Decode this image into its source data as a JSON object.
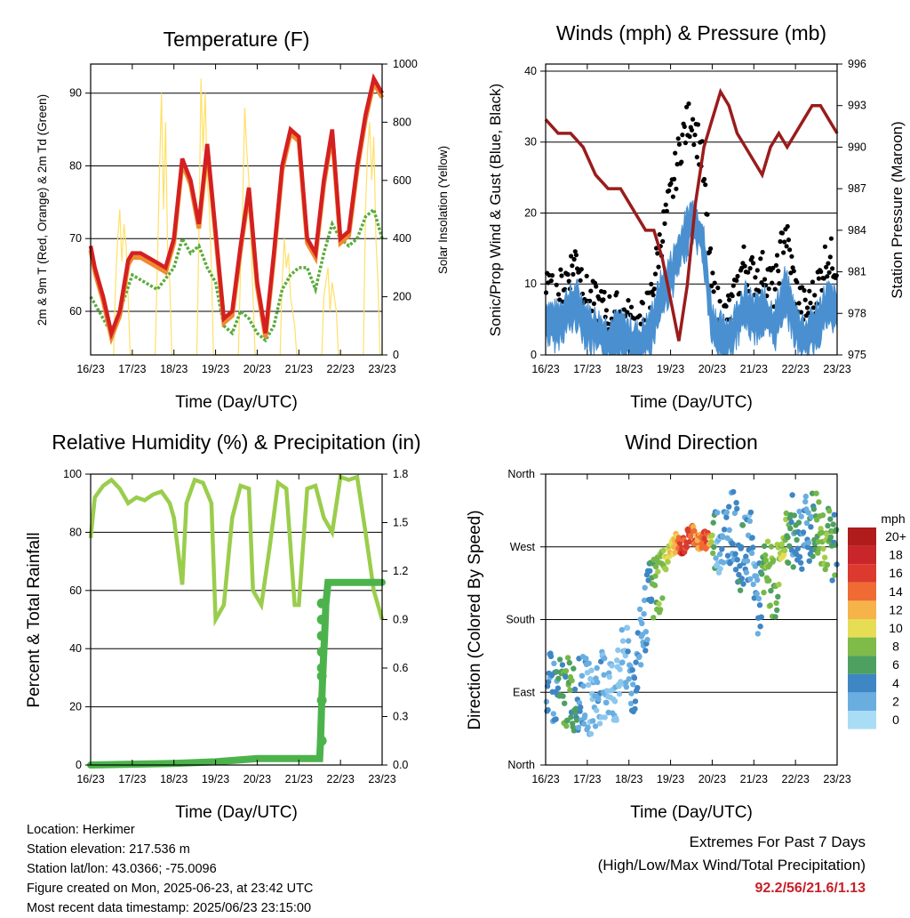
{
  "panels": {
    "temperature": {
      "title": "Temperature (F)",
      "xlabel": "Time (Day/UTC)",
      "ylabel_left": "2m & 9m T (Red, Orange) & 2m Td (Green)",
      "ylabel_right": "Solar Insolation (Yellow)"
    },
    "winds": {
      "title": "Winds (mph) & Pressure (mb)",
      "xlabel": "Time (Day/UTC)",
      "ylabel_left": "Sonic/Prop Wind & Gust (Blue, Black)",
      "ylabel_right": "Station Pressure (Maroon)"
    },
    "humidity": {
      "title": "Relative Humidity (%) & Precipitation (in)",
      "xlabel": "Time (Day/UTC)",
      "ylabel_left": "Percent & Total Rainfall"
    },
    "direction": {
      "title": "Wind Direction",
      "xlabel": "Time (Day/UTC)",
      "ylabel_left": "Direction (Colored By Speed)",
      "legend_title": "mph"
    }
  },
  "info": {
    "location": "Location: Herkimer",
    "elevation": "Station elevation: 217.536 m",
    "latlon": "Station lat/lon: 43.0366; -75.0096",
    "created": "Figure created on Mon, 2025-06-23, at 23:42 UTC",
    "timestamp": "Most recent data timestamp: 2025/06/23 23:15:00"
  },
  "extremes": {
    "line1": "Extremes For Past 7 Days",
    "line2": "(High/Low/Max Wind/Total Precipitation)",
    "values": "92.2/56/21.6/1.13"
  },
  "colors": {
    "temp2m": "#d42020",
    "temp9m": "#f08a30",
    "dewpoint": "#5aab3c",
    "solar": "#ffe066",
    "wind": "#4a90d0",
    "gust": "#000000",
    "pressure": "#9a1c1c",
    "rh": "#9acd4c",
    "precip": "#4cb34c"
  },
  "chart_data": [
    {
      "type": "line",
      "title": "Temperature (F)",
      "xlabel": "Time (Day/UTC)",
      "ylabel": "2m & 9m T (Red, Orange) & 2m Td (Green)",
      "y2label": "Solar Insolation (Yellow)",
      "x_ticks": [
        "16/23",
        "17/23",
        "18/23",
        "19/23",
        "20/23",
        "21/23",
        "22/23",
        "23/23"
      ],
      "ylim": [
        54,
        94
      ],
      "y_ticks": [
        60,
        70,
        80,
        90
      ],
      "y2lim": [
        0,
        1000
      ],
      "y2_ticks": [
        0,
        200,
        400,
        600,
        800,
        1000
      ],
      "series": [
        {
          "name": "2m T",
          "x_days": [
            0,
            0.1,
            0.3,
            0.5,
            0.7,
            0.9,
            1.0,
            1.2,
            1.5,
            1.8,
            2.0,
            2.2,
            2.4,
            2.6,
            2.8,
            3.0,
            3.2,
            3.4,
            3.6,
            3.8,
            4.0,
            4.2,
            4.4,
            4.6,
            4.8,
            5.0,
            5.2,
            5.4,
            5.6,
            5.8,
            6.0,
            6.2,
            6.4,
            6.6,
            6.8,
            7.0
          ],
          "values": [
            69,
            66,
            62,
            57,
            60,
            67,
            68,
            68,
            67,
            66,
            70,
            81,
            78,
            72,
            83,
            71,
            59,
            60,
            69,
            77,
            64,
            57,
            68,
            80,
            85,
            84,
            70,
            68,
            78,
            85,
            70,
            71,
            80,
            87,
            92,
            90
          ]
        },
        {
          "name": "2m Td",
          "x_days": [
            0,
            0.2,
            0.5,
            0.7,
            1.0,
            1.3,
            1.6,
            2.0,
            2.2,
            2.4,
            2.6,
            2.8,
            3.0,
            3.2,
            3.4,
            3.6,
            3.8,
            4.0,
            4.2,
            4.4,
            4.6,
            4.8,
            5.0,
            5.2,
            5.4,
            5.6,
            5.8,
            6.0,
            6.2,
            6.4,
            6.6,
            6.8,
            7.0
          ],
          "values": [
            62,
            60,
            57,
            60,
            65,
            64,
            63,
            66,
            70,
            68,
            69,
            66,
            64,
            58,
            57,
            60,
            59,
            57,
            56,
            58,
            63,
            65,
            66,
            66,
            63,
            68,
            72,
            70,
            69,
            70,
            73,
            74,
            70
          ]
        },
        {
          "name": "Solar Insolation",
          "axis": "y2",
          "x_days": [
            0.55,
            0.6,
            0.65,
            0.7,
            0.75,
            0.8,
            0.85,
            0.9,
            0.95,
            1.55,
            1.6,
            1.65,
            1.7,
            1.75,
            1.8,
            1.85,
            1.9,
            1.95,
            2.55,
            2.6,
            2.65,
            2.7,
            2.75,
            2.8,
            2.85,
            2.9,
            2.95,
            3.55,
            3.6,
            3.65,
            3.7,
            3.75,
            3.8,
            3.85,
            3.9,
            3.95,
            4.55,
            4.6,
            4.65,
            4.7,
            4.75,
            4.8,
            4.85,
            4.9,
            4.95,
            5.55,
            5.6,
            5.65,
            5.7,
            5.75,
            5.8,
            5.85,
            5.9,
            5.95,
            6.55,
            6.6,
            6.65,
            6.7,
            6.75,
            6.8,
            6.85,
            6.9,
            6.95
          ],
          "values": [
            0,
            250,
            400,
            500,
            320,
            450,
            380,
            200,
            0,
            0,
            300,
            600,
            900,
            500,
            800,
            350,
            250,
            0,
            0,
            400,
            950,
            700,
            900,
            600,
            500,
            300,
            0,
            0,
            300,
            500,
            850,
            700,
            600,
            400,
            200,
            0,
            0,
            250,
            400,
            300,
            350,
            200,
            150,
            100,
            0,
            0,
            200,
            250,
            300,
            150,
            250,
            200,
            150,
            0,
            0,
            500,
            700,
            800,
            600,
            750,
            400,
            250,
            0
          ]
        }
      ]
    },
    {
      "type": "line",
      "title": "Winds (mph) & Pressure (mb)",
      "xlabel": "Time (Day/UTC)",
      "ylabel": "Sonic/Prop Wind & Gust (Blue, Black)",
      "y2label": "Station Pressure (Maroon)",
      "x_ticks": [
        "16/23",
        "17/23",
        "18/23",
        "19/23",
        "20/23",
        "21/23",
        "22/23",
        "23/23"
      ],
      "ylim": [
        0,
        41
      ],
      "y_ticks": [
        0,
        10,
        20,
        30,
        40
      ],
      "y2lim": [
        975,
        996
      ],
      "y2_ticks": [
        975,
        978,
        981,
        984,
        987,
        990,
        993,
        996
      ],
      "series": [
        {
          "name": "Pressure",
          "axis": "y2",
          "x_days": [
            0,
            0.3,
            0.6,
            0.9,
            1.2,
            1.5,
            1.8,
            2.0,
            2.2,
            2.4,
            2.6,
            2.8,
            3.0,
            3.2,
            3.4,
            3.6,
            3.8,
            4.0,
            4.2,
            4.4,
            4.6,
            4.8,
            5.0,
            5.2,
            5.4,
            5.6,
            5.8,
            6.0,
            6.2,
            6.4,
            6.6,
            6.8,
            7.0
          ],
          "values": [
            992,
            991,
            991,
            990,
            988,
            987,
            987,
            986,
            985,
            984,
            984,
            982,
            979,
            976,
            980,
            986,
            990,
            992,
            994,
            993,
            991,
            990,
            989,
            988,
            990,
            991,
            990,
            991,
            992,
            993,
            993,
            992,
            991
          ]
        },
        {
          "name": "Wind",
          "x_days": [
            0,
            0.25,
            0.5,
            0.75,
            1.0,
            1.25,
            1.5,
            1.75,
            2.0,
            2.25,
            2.5,
            2.75,
            3.0,
            3.25,
            3.5,
            3.75,
            4.0,
            4.25,
            4.5,
            4.75,
            5.0,
            5.25,
            5.5,
            5.75,
            6.0,
            6.25,
            6.5,
            6.75,
            7.0
          ],
          "values": [
            6,
            5,
            7,
            8,
            5,
            4,
            3,
            4,
            3,
            2,
            4,
            9,
            12,
            16,
            20,
            18,
            5,
            3,
            4,
            8,
            6,
            7,
            5,
            10,
            5,
            3,
            5,
            8,
            7
          ]
        },
        {
          "name": "Gust",
          "x_days": [
            0,
            0.25,
            0.5,
            0.75,
            1.0,
            1.25,
            1.5,
            1.75,
            2.0,
            2.25,
            2.5,
            2.75,
            3.0,
            3.25,
            3.5,
            3.75,
            4.0,
            4.25,
            4.5,
            4.75,
            5.0,
            5.25,
            5.5,
            5.75,
            6.0,
            6.25,
            6.5,
            6.75,
            7.0
          ],
          "values": [
            9,
            8,
            11,
            14,
            8,
            7,
            6,
            6,
            5,
            4,
            7,
            16,
            22,
            30,
            34,
            28,
            9,
            5,
            7,
            13,
            11,
            12,
            9,
            18,
            9,
            6,
            9,
            14,
            13
          ]
        }
      ]
    },
    {
      "type": "line",
      "title": "Relative Humidity (%) & Precipitation (in)",
      "xlabel": "Time (Day/UTC)",
      "ylabel": "Percent & Total Rainfall",
      "x_ticks": [
        "16/23",
        "17/23",
        "18/23",
        "19/23",
        "20/23",
        "21/23",
        "22/23",
        "23/23"
      ],
      "ylim": [
        0,
        100
      ],
      "y_ticks": [
        0,
        20,
        40,
        60,
        80,
        100
      ],
      "y2lim": [
        0,
        1.8
      ],
      "y2_ticks": [
        0.0,
        0.3,
        0.6,
        0.9,
        1.2,
        1.5,
        1.8
      ],
      "series": [
        {
          "name": "Relative Humidity",
          "x_days": [
            0,
            0.1,
            0.3,
            0.5,
            0.7,
            0.9,
            1.1,
            1.3,
            1.5,
            1.7,
            1.9,
            2.0,
            2.2,
            2.3,
            2.5,
            2.7,
            2.9,
            3.0,
            3.2,
            3.4,
            3.6,
            3.8,
            3.9,
            4.1,
            4.3,
            4.5,
            4.7,
            4.9,
            5.0,
            5.2,
            5.4,
            5.6,
            5.8,
            6.0,
            6.2,
            6.4,
            6.6,
            6.8,
            7.0
          ],
          "values": [
            78,
            92,
            96,
            98,
            95,
            90,
            92,
            91,
            93,
            94,
            90,
            85,
            62,
            90,
            98,
            97,
            90,
            50,
            55,
            85,
            96,
            95,
            60,
            55,
            75,
            97,
            95,
            55,
            55,
            95,
            96,
            85,
            80,
            99,
            98,
            99,
            80,
            60,
            50
          ]
        },
        {
          "name": "Total Precipitation",
          "axis": "y2",
          "x_days": [
            0,
            1,
            2,
            3,
            4,
            5,
            5.5,
            5.52,
            5.55,
            5.58,
            5.6,
            5.62,
            5.65,
            5.7,
            6,
            7
          ],
          "values": [
            0,
            0.005,
            0.01,
            0.02,
            0.04,
            0.04,
            0.04,
            0.15,
            0.4,
            0.6,
            0.7,
            0.8,
            1.0,
            1.13,
            1.13,
            1.13
          ]
        }
      ]
    },
    {
      "type": "scatter",
      "title": "Wind Direction",
      "xlabel": "Time (Day/UTC)",
      "ylabel": "Direction (Colored By Speed)",
      "x_ticks": [
        "16/23",
        "17/23",
        "18/23",
        "19/23",
        "20/23",
        "21/23",
        "22/23",
        "23/23"
      ],
      "y_ticks": [
        "North",
        "East",
        "South",
        "West",
        "North"
      ],
      "ylim": [
        0,
        360
      ],
      "colorbar": {
        "title": "mph",
        "labels": [
          "20+",
          "18",
          "16",
          "14",
          "12",
          "10",
          "8",
          "6",
          "4",
          "2",
          "0"
        ]
      },
      "series": [
        {
          "name": "Direction",
          "x_days": [
            0.1,
            0.3,
            0.5,
            0.7,
            0.9,
            1.1,
            1.3,
            1.5,
            1.7,
            1.9,
            2.1,
            2.3,
            2.5,
            2.7,
            2.8,
            2.9,
            3.1,
            3.3,
            3.5,
            3.7,
            3.9,
            4.1,
            4.3,
            4.5,
            4.7,
            4.9,
            5.1,
            5.3,
            5.5,
            5.7,
            5.9,
            6.1,
            6.3,
            6.5,
            6.7,
            6.9
          ],
          "values": [
            95,
            88,
            90,
            85,
            92,
            80,
            95,
            100,
            90,
            140,
            95,
            160,
            210,
            225,
            240,
            255,
            275,
            270,
            290,
            275,
            280,
            280,
            285,
            300,
            250,
            280,
            200,
            240,
            220,
            270,
            290,
            285,
            290,
            300,
            280,
            270
          ],
          "speeds": [
            5,
            6,
            8,
            7,
            4,
            3,
            4,
            3,
            2,
            3,
            5,
            4,
            6,
            10,
            9,
            12,
            14,
            18,
            17,
            15,
            18,
            3,
            4,
            5,
            6,
            4,
            4,
            10,
            8,
            12,
            6,
            5,
            4,
            8,
            10,
            7
          ]
        }
      ]
    }
  ]
}
